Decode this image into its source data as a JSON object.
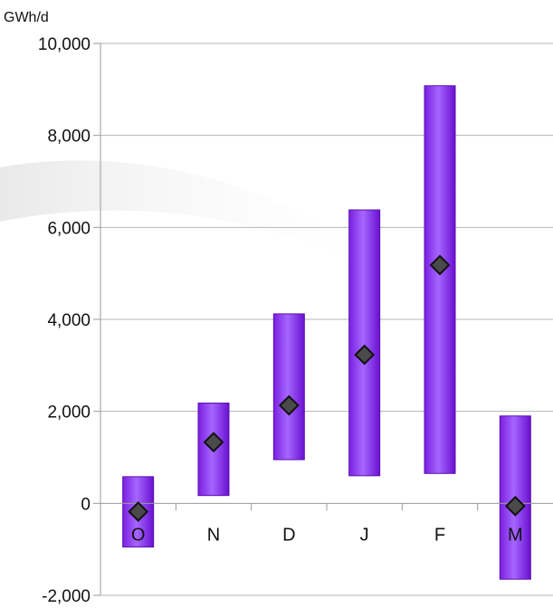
{
  "chart_data": {
    "type": "bar",
    "unit_label": "GWh/d",
    "categories": [
      "O",
      "N",
      "D",
      "J",
      "F",
      "M"
    ],
    "range_low": [
      -950,
      170,
      950,
      600,
      650,
      -1650
    ],
    "range_high": [
      580,
      2180,
      4120,
      6380,
      9080,
      1900
    ],
    "marker_values": [
      -180,
      1330,
      2130,
      3230,
      5180,
      -60
    ],
    "ylim": [
      -2000,
      10000
    ],
    "yticks": [
      -2000,
      0,
      2000,
      4000,
      6000,
      8000,
      10000
    ],
    "ytick_labels": [
      "-2,000",
      "0",
      "2,000",
      "4,000",
      "6,000",
      "8,000",
      "10,000"
    ],
    "grid": true,
    "legend": "none",
    "bar_color": "#8a2be2",
    "marker_color": "#4a4a4a"
  }
}
